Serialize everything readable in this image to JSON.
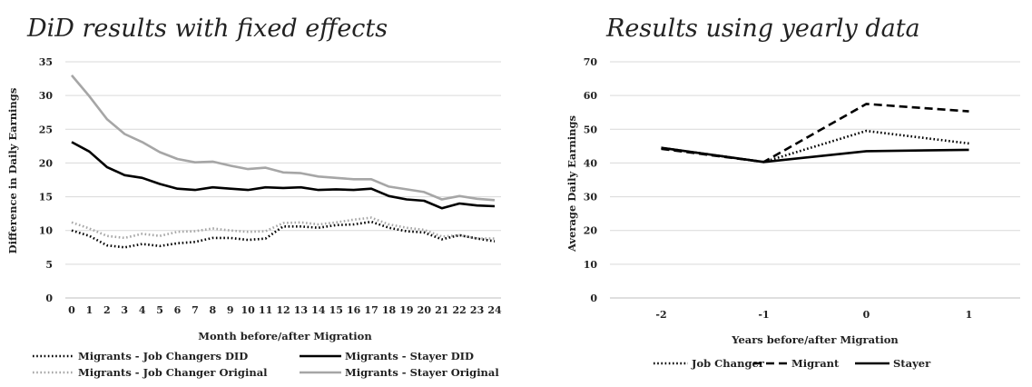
{
  "chart_data": [
    {
      "type": "line",
      "title": "DiD results with fixed effects",
      "xlabel": "Month before/after Migration",
      "ylabel": "Difference in Daily Earnings",
      "ylim": [
        0,
        35
      ],
      "yticks": [
        0,
        5,
        10,
        15,
        20,
        25,
        30,
        35
      ],
      "grid": true,
      "legend_position": "bottom",
      "categories": [
        "0",
        "1",
        "2",
        "3",
        "4",
        "5",
        "6",
        "7",
        "8",
        "9",
        "10",
        "11",
        "12",
        "13",
        "14",
        "15",
        "16",
        "17",
        "18",
        "19",
        "20",
        "21",
        "22",
        "23",
        "24"
      ],
      "series": [
        {
          "name": "Migrants - Job Changers DID",
          "color": "#000000",
          "style": "dotted",
          "values": [
            10.0,
            9.2,
            7.8,
            7.5,
            8.0,
            7.7,
            8.1,
            8.3,
            8.9,
            8.9,
            8.6,
            8.8,
            10.6,
            10.6,
            10.4,
            10.8,
            10.9,
            11.3,
            10.4,
            9.9,
            9.7,
            8.7,
            9.3,
            8.8,
            8.4
          ]
        },
        {
          "name": "Migrants - Stayer DID",
          "color": "#000000",
          "style": "solid",
          "values": [
            23.1,
            21.7,
            19.4,
            18.2,
            17.8,
            16.9,
            16.2,
            16.0,
            16.4,
            16.2,
            16.0,
            16.4,
            16.3,
            16.4,
            16.0,
            16.1,
            16.0,
            16.2,
            15.1,
            14.6,
            14.4,
            13.3,
            14.0,
            13.7,
            13.6
          ]
        },
        {
          "name": "Migrants - Job Changer Original",
          "color": "#a6a6a6",
          "style": "dotted",
          "values": [
            11.2,
            10.3,
            9.2,
            8.9,
            9.5,
            9.2,
            9.8,
            9.9,
            10.3,
            10.0,
            9.8,
            9.9,
            11.1,
            11.2,
            10.9,
            11.2,
            11.6,
            11.9,
            10.9,
            10.4,
            10.1,
            9.1,
            9.3,
            8.8,
            8.8
          ]
        },
        {
          "name": "Migrants - Stayer Original",
          "color": "#a6a6a6",
          "style": "solid",
          "values": [
            33.0,
            29.9,
            26.5,
            24.3,
            23.1,
            21.6,
            20.6,
            20.1,
            20.2,
            19.6,
            19.1,
            19.3,
            18.6,
            18.5,
            18.0,
            17.8,
            17.6,
            17.6,
            16.5,
            16.1,
            15.7,
            14.6,
            15.1,
            14.7,
            14.5
          ]
        }
      ]
    },
    {
      "type": "line",
      "title": "Results using yearly data",
      "xlabel": "Years before/after Migration",
      "ylabel": "Average Daily Earnings",
      "ylim": [
        0,
        70
      ],
      "yticks": [
        0,
        10,
        20,
        30,
        40,
        50,
        60,
        70
      ],
      "grid": true,
      "legend_position": "bottom",
      "categories": [
        "-2",
        "-1",
        "0",
        "1"
      ],
      "series": [
        {
          "name": "Job Changer",
          "color": "#000000",
          "style": "dotted",
          "values": [
            44.5,
            40.3,
            49.5,
            45.8
          ]
        },
        {
          "name": "Migrant",
          "color": "#000000",
          "style": "dashed",
          "values": [
            44.2,
            40.3,
            57.5,
            55.3
          ]
        },
        {
          "name": "Stayer",
          "color": "#000000",
          "style": "solid",
          "values": [
            44.5,
            40.3,
            43.5,
            43.9
          ]
        }
      ]
    }
  ]
}
